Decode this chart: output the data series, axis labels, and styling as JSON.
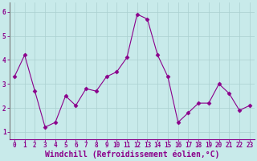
{
  "x": [
    0,
    1,
    2,
    3,
    4,
    5,
    6,
    7,
    8,
    9,
    10,
    11,
    12,
    13,
    14,
    15,
    16,
    17,
    18,
    19,
    20,
    21,
    22,
    23
  ],
  "y": [
    3.3,
    4.2,
    2.7,
    1.2,
    1.4,
    2.5,
    2.1,
    2.8,
    2.7,
    3.3,
    3.5,
    4.1,
    5.9,
    5.7,
    4.2,
    3.3,
    1.4,
    1.8,
    2.2,
    2.2,
    3.0,
    2.6,
    1.9,
    2.1
  ],
  "line_color": "#8b008b",
  "marker": "D",
  "marker_size": 2.5,
  "bg_color": "#c8eaea",
  "grid_color": "#aad0d0",
  "xlabel": "Windchill (Refroidissement éolien,°C)",
  "xlabel_color": "#8b008b",
  "xlabel_fontsize": 7,
  "ytick_labels": [
    "1",
    "2",
    "3",
    "4",
    "5",
    "6"
  ],
  "yticks": [
    1,
    2,
    3,
    4,
    5,
    6
  ],
  "xticks": [
    0,
    1,
    2,
    3,
    4,
    5,
    6,
    7,
    8,
    9,
    10,
    11,
    12,
    13,
    14,
    15,
    16,
    17,
    18,
    19,
    20,
    21,
    22,
    23
  ],
  "ylim": [
    0.7,
    6.4
  ],
  "xlim": [
    -0.5,
    23.5
  ],
  "tick_color": "#8b008b",
  "tick_fontsize": 5.5,
  "spine_color": "#8b008b",
  "left_spine_color": "#777777"
}
